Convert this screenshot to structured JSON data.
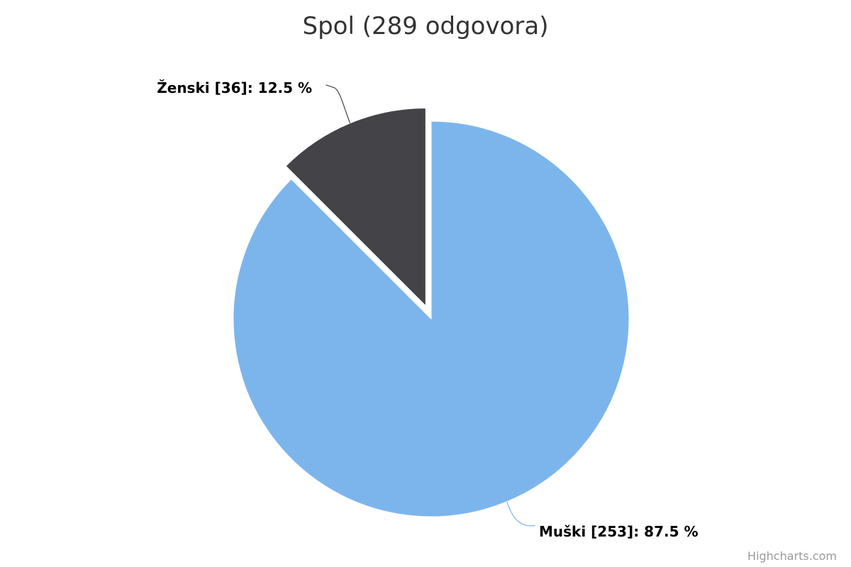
{
  "chart_data": {
    "type": "pie",
    "title": "Spol (289 odgovora)",
    "slices": [
      {
        "name": "Muški",
        "count": 253,
        "percent": 87.5,
        "label": "Muški [253]: 87.5 %",
        "color": "#7cb5ec",
        "sliced": false
      },
      {
        "name": "Ženski",
        "count": 36,
        "percent": 12.5,
        "label": "Ženski [36]: 12.5 %",
        "color": "#434348",
        "sliced": true
      }
    ],
    "start_angle": "12 o'clock, clockwise"
  },
  "credits": "Highcharts.com"
}
